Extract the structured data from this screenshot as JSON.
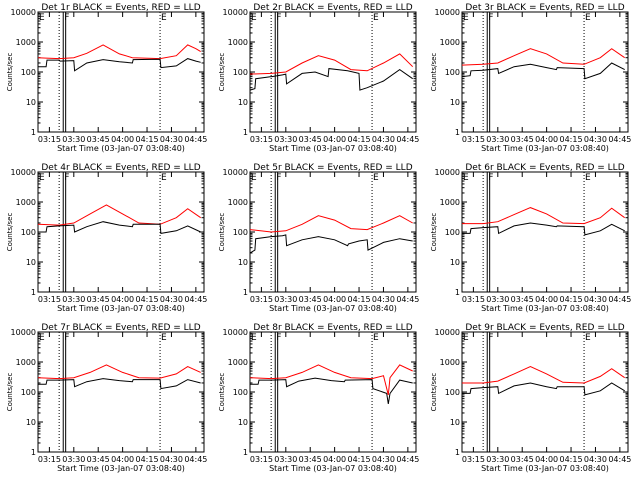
{
  "chart_data": {
    "type": "line",
    "y_scale": "log",
    "ylim": [
      1,
      10000
    ],
    "x_range_minutes": [
      0,
      102
    ],
    "y_ticks": [
      {
        "v": 1,
        "label": "1"
      },
      {
        "v": 10,
        "label": "10"
      },
      {
        "v": 100,
        "label": "100"
      },
      {
        "v": 1000,
        "label": "1000"
      },
      {
        "v": 10000,
        "label": "10000"
      }
    ],
    "x_ticks": [
      {
        "m": 7,
        "label": "03:15"
      },
      {
        "m": 22,
        "label": "03:30"
      },
      {
        "m": 37,
        "label": "03:45"
      },
      {
        "m": 52,
        "label": "04:00"
      },
      {
        "m": 67,
        "label": "04:15"
      },
      {
        "m": 82,
        "label": "04:30"
      },
      {
        "m": 97,
        "label": "04:45"
      }
    ],
    "ylabel": "Counts/sec",
    "xlabel": "Start Time (03-Jan-07 03:08:40)",
    "legend_text": "BLACK = Events, RED = LLD",
    "series_names": [
      "Events",
      "LLD"
    ],
    "series_colors": {
      "Events": "#000000",
      "LLD": "#ff0000"
    },
    "panels": [
      {
        "title": "Det 1r",
        "marker_E_left": "E",
        "marker_F": "F",
        "marker_E_right": "E",
        "dotted_lines_min": [
          13,
          75
        ],
        "solid_lines_min": [
          15.5,
          17
        ],
        "events": [
          [
            0,
            150
          ],
          [
            5,
            150
          ],
          [
            5.5,
            250
          ],
          [
            13,
            250
          ],
          [
            13.5,
            230
          ],
          [
            22,
            240
          ],
          [
            22.5,
            110
          ],
          [
            30,
            200
          ],
          [
            40,
            260
          ],
          [
            50,
            220
          ],
          [
            58,
            200
          ],
          [
            58.5,
            260
          ],
          [
            75,
            265
          ],
          [
            75.5,
            140
          ],
          [
            85,
            160
          ],
          [
            92,
            280
          ],
          [
            97,
            230
          ],
          [
            100,
            210
          ]
        ],
        "lld": [
          [
            0,
            300
          ],
          [
            5,
            290
          ],
          [
            13,
            280
          ],
          [
            22,
            300
          ],
          [
            30,
            420
          ],
          [
            40,
            800
          ],
          [
            50,
            400
          ],
          [
            58,
            300
          ],
          [
            75,
            280
          ],
          [
            85,
            350
          ],
          [
            92,
            800
          ],
          [
            97,
            600
          ],
          [
            100,
            480
          ]
        ]
      },
      {
        "title": "Det 2r",
        "marker_E_left": "E",
        "marker_F": "F",
        "marker_E_right": "E",
        "dotted_lines_min": [
          13,
          75
        ],
        "solid_lines_min": [
          15.5,
          17
        ],
        "events": [
          [
            0,
            25
          ],
          [
            3,
            28
          ],
          [
            3.5,
            60
          ],
          [
            13,
            70
          ],
          [
            13.5,
            70
          ],
          [
            20,
            80
          ],
          [
            22,
            85
          ],
          [
            22.5,
            40
          ],
          [
            32,
            90
          ],
          [
            40,
            100
          ],
          [
            48,
            70
          ],
          [
            48.5,
            130
          ],
          [
            60,
            110
          ],
          [
            67,
            90
          ],
          [
            67.5,
            25
          ],
          [
            72,
            30
          ],
          [
            82,
            50
          ],
          [
            92,
            120
          ],
          [
            100,
            60
          ]
        ],
        "lld": [
          [
            0,
            85
          ],
          [
            13,
            90
          ],
          [
            22,
            100
          ],
          [
            32,
            200
          ],
          [
            42,
            350
          ],
          [
            52,
            250
          ],
          [
            62,
            120
          ],
          [
            72,
            110
          ],
          [
            82,
            200
          ],
          [
            92,
            400
          ],
          [
            100,
            150
          ]
        ]
      },
      {
        "title": "Det 3r",
        "marker_E_left": "E",
        "marker_F": "F",
        "marker_E_right": "E",
        "dotted_lines_min": [
          13,
          75
        ],
        "solid_lines_min": [
          15.5,
          17
        ],
        "events": [
          [
            0,
            70
          ],
          [
            5,
            75
          ],
          [
            5.5,
            110
          ],
          [
            13,
            115
          ],
          [
            22,
            130
          ],
          [
            22.5,
            90
          ],
          [
            32,
            150
          ],
          [
            42,
            180
          ],
          [
            52,
            140
          ],
          [
            58,
            120
          ],
          [
            58.5,
            140
          ],
          [
            75,
            130
          ],
          [
            75.5,
            60
          ],
          [
            85,
            90
          ],
          [
            92,
            200
          ],
          [
            100,
            120
          ]
        ],
        "lld": [
          [
            0,
            170
          ],
          [
            13,
            180
          ],
          [
            22,
            200
          ],
          [
            32,
            350
          ],
          [
            42,
            600
          ],
          [
            52,
            400
          ],
          [
            62,
            200
          ],
          [
            75,
            180
          ],
          [
            85,
            300
          ],
          [
            92,
            600
          ],
          [
            100,
            300
          ]
        ]
      },
      {
        "title": "Det 4r",
        "marker_E_left": "E",
        "marker_F": "F",
        "marker_E_right": "E",
        "dotted_lines_min": [
          13,
          75
        ],
        "solid_lines_min": [
          15.5,
          17
        ],
        "events": [
          [
            0,
            100
          ],
          [
            5,
            100
          ],
          [
            5.5,
            150
          ],
          [
            13,
            160
          ],
          [
            22,
            170
          ],
          [
            22.5,
            100
          ],
          [
            30,
            150
          ],
          [
            40,
            220
          ],
          [
            50,
            170
          ],
          [
            58,
            150
          ],
          [
            58.5,
            180
          ],
          [
            75,
            180
          ],
          [
            75.5,
            90
          ],
          [
            85,
            110
          ],
          [
            92,
            160
          ],
          [
            100,
            100
          ]
        ],
        "lld": [
          [
            0,
            180
          ],
          [
            13,
            170
          ],
          [
            22,
            200
          ],
          [
            32,
            400
          ],
          [
            42,
            800
          ],
          [
            52,
            400
          ],
          [
            62,
            200
          ],
          [
            75,
            180
          ],
          [
            85,
            300
          ],
          [
            92,
            600
          ],
          [
            100,
            300
          ]
        ]
      },
      {
        "title": "Det 5r",
        "marker_E_left": "E",
        "marker_F": "F",
        "marker_E_right": "E",
        "dotted_lines_min": [
          13,
          75
        ],
        "solid_lines_min": [
          15.5,
          17
        ],
        "events": [
          [
            0,
            20
          ],
          [
            3,
            25
          ],
          [
            3.5,
            60
          ],
          [
            13,
            70
          ],
          [
            20,
            75
          ],
          [
            22,
            80
          ],
          [
            22.5,
            35
          ],
          [
            32,
            55
          ],
          [
            42,
            70
          ],
          [
            52,
            55
          ],
          [
            60,
            35
          ],
          [
            60.5,
            40
          ],
          [
            67,
            50
          ],
          [
            72,
            55
          ],
          [
            72.5,
            25
          ],
          [
            82,
            45
          ],
          [
            92,
            60
          ],
          [
            100,
            50
          ]
        ],
        "lld": [
          [
            0,
            120
          ],
          [
            13,
            100
          ],
          [
            22,
            110
          ],
          [
            32,
            180
          ],
          [
            42,
            350
          ],
          [
            52,
            250
          ],
          [
            62,
            130
          ],
          [
            72,
            120
          ],
          [
            82,
            200
          ],
          [
            92,
            350
          ],
          [
            100,
            200
          ]
        ]
      },
      {
        "title": "Det 6r",
        "marker_E_left": "E",
        "marker_F": "F",
        "marker_E_right": "E",
        "dotted_lines_min": [
          13,
          75
        ],
        "solid_lines_min": [
          15.5,
          17
        ],
        "events": [
          [
            0,
            90
          ],
          [
            5,
            90
          ],
          [
            5.5,
            130
          ],
          [
            13,
            140
          ],
          [
            22,
            150
          ],
          [
            22.5,
            90
          ],
          [
            32,
            160
          ],
          [
            42,
            200
          ],
          [
            52,
            170
          ],
          [
            58,
            150
          ],
          [
            58.5,
            160
          ],
          [
            75,
            150
          ],
          [
            75.5,
            80
          ],
          [
            85,
            110
          ],
          [
            92,
            180
          ],
          [
            100,
            110
          ]
        ],
        "lld": [
          [
            0,
            190
          ],
          [
            13,
            190
          ],
          [
            22,
            220
          ],
          [
            32,
            380
          ],
          [
            42,
            650
          ],
          [
            52,
            400
          ],
          [
            62,
            200
          ],
          [
            75,
            190
          ],
          [
            85,
            300
          ],
          [
            92,
            620
          ],
          [
            100,
            300
          ]
        ]
      },
      {
        "title": "Det 7r",
        "marker_E_left": "E",
        "marker_F": "F",
        "marker_E_right": "E",
        "dotted_lines_min": [
          13,
          75
        ],
        "solid_lines_min": [
          15.5,
          17
        ],
        "events": [
          [
            0,
            180
          ],
          [
            5,
            180
          ],
          [
            5.5,
            250
          ],
          [
            13,
            250
          ],
          [
            22,
            260
          ],
          [
            22.5,
            150
          ],
          [
            30,
            220
          ],
          [
            40,
            280
          ],
          [
            50,
            240
          ],
          [
            58,
            220
          ],
          [
            58.5,
            260
          ],
          [
            75,
            260
          ],
          [
            75.5,
            130
          ],
          [
            85,
            160
          ],
          [
            92,
            260
          ],
          [
            100,
            200
          ]
        ],
        "lld": [
          [
            0,
            300
          ],
          [
            13,
            280
          ],
          [
            22,
            300
          ],
          [
            32,
            450
          ],
          [
            42,
            800
          ],
          [
            52,
            450
          ],
          [
            62,
            300
          ],
          [
            75,
            290
          ],
          [
            85,
            400
          ],
          [
            92,
            700
          ],
          [
            100,
            450
          ]
        ]
      },
      {
        "title": "Det 8r",
        "marker_E_left": "E",
        "marker_F": "F",
        "marker_E_right": "E",
        "dotted_lines_min": [
          13,
          75
        ],
        "solid_lines_min": [
          15.5,
          17
        ],
        "events": [
          [
            0,
            180
          ],
          [
            5,
            180
          ],
          [
            5.5,
            250
          ],
          [
            13,
            250
          ],
          [
            22,
            260
          ],
          [
            22.5,
            150
          ],
          [
            30,
            230
          ],
          [
            40,
            290
          ],
          [
            50,
            240
          ],
          [
            58,
            220
          ],
          [
            58.5,
            250
          ],
          [
            75,
            260
          ],
          [
            75.5,
            130
          ],
          [
            84,
            90
          ],
          [
            85,
            40
          ],
          [
            86,
            90
          ],
          [
            92,
            250
          ],
          [
            100,
            200
          ]
        ],
        "lld": [
          [
            0,
            300
          ],
          [
            13,
            280
          ],
          [
            22,
            300
          ],
          [
            32,
            450
          ],
          [
            42,
            800
          ],
          [
            52,
            450
          ],
          [
            62,
            300
          ],
          [
            75,
            280
          ],
          [
            82,
            350
          ],
          [
            85,
            80
          ],
          [
            86,
            300
          ],
          [
            92,
            800
          ],
          [
            100,
            500
          ]
        ]
      },
      {
        "title": "Det 9r",
        "marker_E_left": "E",
        "marker_F": "F",
        "marker_E_right": "E",
        "dotted_lines_min": [
          13,
          75
        ],
        "solid_lines_min": [
          15.5,
          17
        ],
        "events": [
          [
            0,
            90
          ],
          [
            5,
            90
          ],
          [
            5.5,
            130
          ],
          [
            13,
            140
          ],
          [
            22,
            150
          ],
          [
            22.5,
            90
          ],
          [
            32,
            160
          ],
          [
            42,
            200
          ],
          [
            52,
            150
          ],
          [
            58,
            130
          ],
          [
            58.5,
            150
          ],
          [
            75,
            150
          ],
          [
            75.5,
            80
          ],
          [
            85,
            110
          ],
          [
            92,
            200
          ],
          [
            100,
            110
          ]
        ],
        "lld": [
          [
            0,
            200
          ],
          [
            13,
            200
          ],
          [
            22,
            230
          ],
          [
            32,
            400
          ],
          [
            42,
            700
          ],
          [
            52,
            400
          ],
          [
            62,
            210
          ],
          [
            75,
            200
          ],
          [
            85,
            330
          ],
          [
            92,
            600
          ],
          [
            100,
            300
          ]
        ]
      }
    ]
  }
}
